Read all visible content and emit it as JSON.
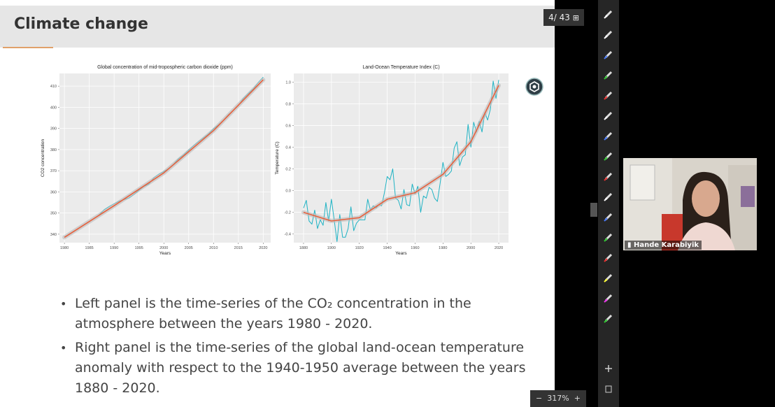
{
  "slide": {
    "title": "Climate change",
    "bullets": [
      {
        "lines": [
          "Left panel is the time-series of the CO₂ concentration in the",
          "atmosphere between the years 1980 - 2020."
        ]
      },
      {
        "lines": [
          "Right panel is the time-series of the global land-ocean temperature",
          "anomaly with respect to the 1940-1950 average between the years",
          "1880 - 2020."
        ]
      }
    ]
  },
  "viewer": {
    "page": "4/ 43",
    "zoom": "317%",
    "participant": "Hande Karabiyik"
  },
  "chart_data": [
    {
      "type": "line",
      "title": "Global concentration of mid-tropospheric carbon dioxide (ppm)",
      "x_label": "Years",
      "y_label": "CO2 concentration",
      "xlim": [
        1979,
        2021.5
      ],
      "xticks": [
        1980,
        1985,
        1990,
        1995,
        2000,
        2005,
        2010,
        2015,
        2020
      ],
      "ylim": [
        336,
        416
      ],
      "yticks": [
        340,
        350,
        360,
        370,
        380,
        390,
        400,
        410
      ],
      "grid": true,
      "series": [
        {
          "color": "#1fb3c4",
          "x": [
            1980,
            1981,
            1982,
            1983,
            1984,
            1985,
            1986,
            1987,
            1988,
            1989,
            1990,
            1991,
            1992,
            1993,
            1994,
            1995,
            1996,
            1997,
            1998,
            1999,
            2000,
            2001,
            2002,
            2003,
            2004,
            2005,
            2006,
            2007,
            2008,
            2009,
            2010,
            2011,
            2012,
            2013,
            2014,
            2015,
            2016,
            2017,
            2018,
            2019,
            2020
          ],
          "values": [
            338.7,
            340.1,
            341.4,
            343.0,
            344.6,
            346.0,
            347.4,
            349.2,
            351.6,
            353.1,
            354.4,
            355.6,
            356.4,
            357.1,
            358.8,
            360.8,
            362.6,
            363.7,
            366.7,
            368.4,
            369.6,
            371.1,
            373.2,
            375.8,
            377.5,
            379.8,
            381.9,
            383.8,
            385.6,
            387.4,
            389.9,
            391.7,
            393.9,
            396.5,
            398.6,
            400.8,
            404.2,
            406.5,
            408.7,
            411.7,
            414.2
          ]
        },
        {
          "color": "#e8603c",
          "x": [
            1980,
            1990,
            2000,
            2010,
            2020
          ],
          "values": [
            338.5,
            353.5,
            369,
            389,
            413
          ]
        }
      ]
    },
    {
      "type": "line",
      "title": "Land-Ocean Temperature Index (C)",
      "x_label": "Years",
      "y_label": "Temperature (C)",
      "xlim": [
        1873,
        2027
      ],
      "xticks": [
        1880,
        1900,
        1920,
        1940,
        1960,
        1980,
        2000,
        2020
      ],
      "ylim": [
        -0.48,
        1.08
      ],
      "yticks": [
        -0.4,
        -0.2,
        {
          "value": 0,
          "label": "0.0"
        },
        0.2,
        0.4,
        0.6,
        0.8,
        {
          "value": 1,
          "label": "1.0"
        }
      ],
      "grid": true,
      "series": [
        {
          "color": "#1fb3c4",
          "x": [
            1880,
            1882,
            1884,
            1886,
            1888,
            1890,
            1892,
            1894,
            1896,
            1898,
            1900,
            1902,
            1904,
            1906,
            1908,
            1910,
            1912,
            1914,
            1916,
            1918,
            1920,
            1922,
            1924,
            1926,
            1928,
            1930,
            1932,
            1934,
            1936,
            1938,
            1940,
            1942,
            1944,
            1946,
            1948,
            1950,
            1952,
            1954,
            1956,
            1958,
            1960,
            1962,
            1964,
            1966,
            1968,
            1970,
            1972,
            1974,
            1976,
            1978,
            1980,
            1982,
            1984,
            1986,
            1988,
            1990,
            1992,
            1994,
            1996,
            1998,
            2000,
            2002,
            2004,
            2006,
            2008,
            2010,
            2012,
            2014,
            2016,
            2018,
            2020
          ],
          "values": [
            -0.16,
            -0.09,
            -0.28,
            -0.31,
            -0.18,
            -0.35,
            -0.27,
            -0.32,
            -0.11,
            -0.28,
            -0.08,
            -0.27,
            -0.47,
            -0.22,
            -0.43,
            -0.43,
            -0.35,
            -0.15,
            -0.37,
            -0.3,
            -0.27,
            -0.27,
            -0.27,
            -0.08,
            -0.18,
            -0.14,
            -0.16,
            -0.13,
            -0.14,
            -0.02,
            0.13,
            0.1,
            0.2,
            -0.07,
            -0.09,
            -0.17,
            0.01,
            -0.13,
            -0.14,
            0.06,
            -0.03,
            0.04,
            -0.2,
            -0.05,
            -0.07,
            0.03,
            0.01,
            -0.07,
            -0.1,
            0.07,
            0.26,
            0.13,
            0.15,
            0.18,
            0.39,
            0.45,
            0.23,
            0.31,
            0.33,
            0.61,
            0.4,
            0.63,
            0.54,
            0.64,
            0.54,
            0.72,
            0.65,
            0.75,
            1.01,
            0.85,
            1.02
          ]
        },
        {
          "color": "#e8603c",
          "x": [
            1880,
            1900,
            1920,
            1940,
            1960,
            1980,
            2000,
            2020
          ],
          "values": [
            -0.2,
            -0.28,
            -0.25,
            -0.08,
            -0.02,
            0.15,
            0.45,
            0.97
          ]
        }
      ]
    }
  ]
}
